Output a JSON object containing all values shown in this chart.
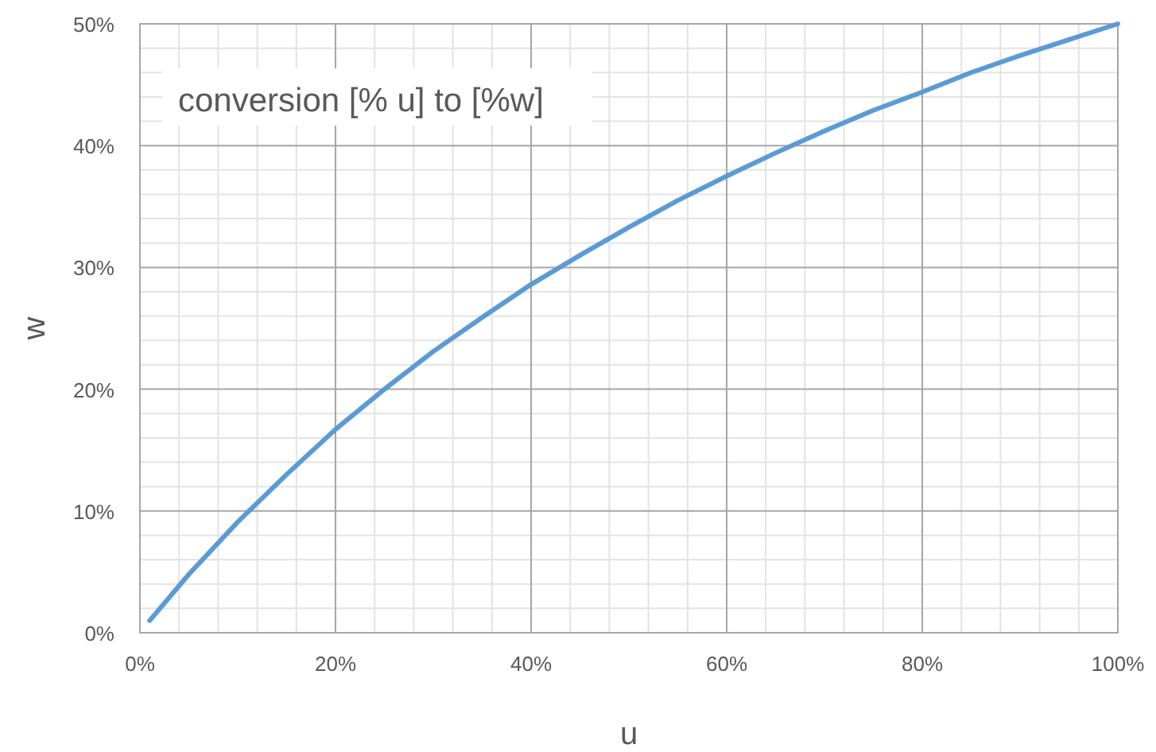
{
  "chart_data": {
    "type": "line",
    "xlabel": "u",
    "ylabel": "w",
    "annotations": [
      "conversion [% u] to [%w]"
    ],
    "x": [
      1,
      5,
      10,
      15,
      20,
      25,
      30,
      35,
      40,
      45,
      50,
      55,
      60,
      65,
      70,
      75,
      80,
      85,
      90,
      95,
      100
    ],
    "series": [
      {
        "color": "#5b9bd5",
        "values": [
          1.0,
          4.8,
          9.1,
          13.0,
          16.7,
          20.0,
          23.1,
          25.9,
          28.6,
          31.0,
          33.3,
          35.5,
          37.5,
          39.4,
          41.2,
          42.9,
          44.4,
          46.0,
          47.4,
          48.7,
          50.0
        ]
      }
    ],
    "xlim": [
      0,
      100
    ],
    "ylim": [
      0,
      50
    ],
    "xticks": [
      {
        "value": 0,
        "label": "0%"
      },
      {
        "value": 20,
        "label": "20%"
      },
      {
        "value": 40,
        "label": "40%"
      },
      {
        "value": 60,
        "label": "60%"
      },
      {
        "value": 80,
        "label": "80%"
      },
      {
        "value": 100,
        "label": "100%"
      }
    ],
    "yticks": [
      {
        "value": 0,
        "label": "0%"
      },
      {
        "value": 10,
        "label": "10%"
      },
      {
        "value": 20,
        "label": "20%"
      },
      {
        "value": 30,
        "label": "30%"
      },
      {
        "value": 40,
        "label": "40%"
      },
      {
        "value": 50,
        "label": "50%"
      }
    ],
    "grid": true,
    "marker": "none",
    "line_style": "solid"
  }
}
